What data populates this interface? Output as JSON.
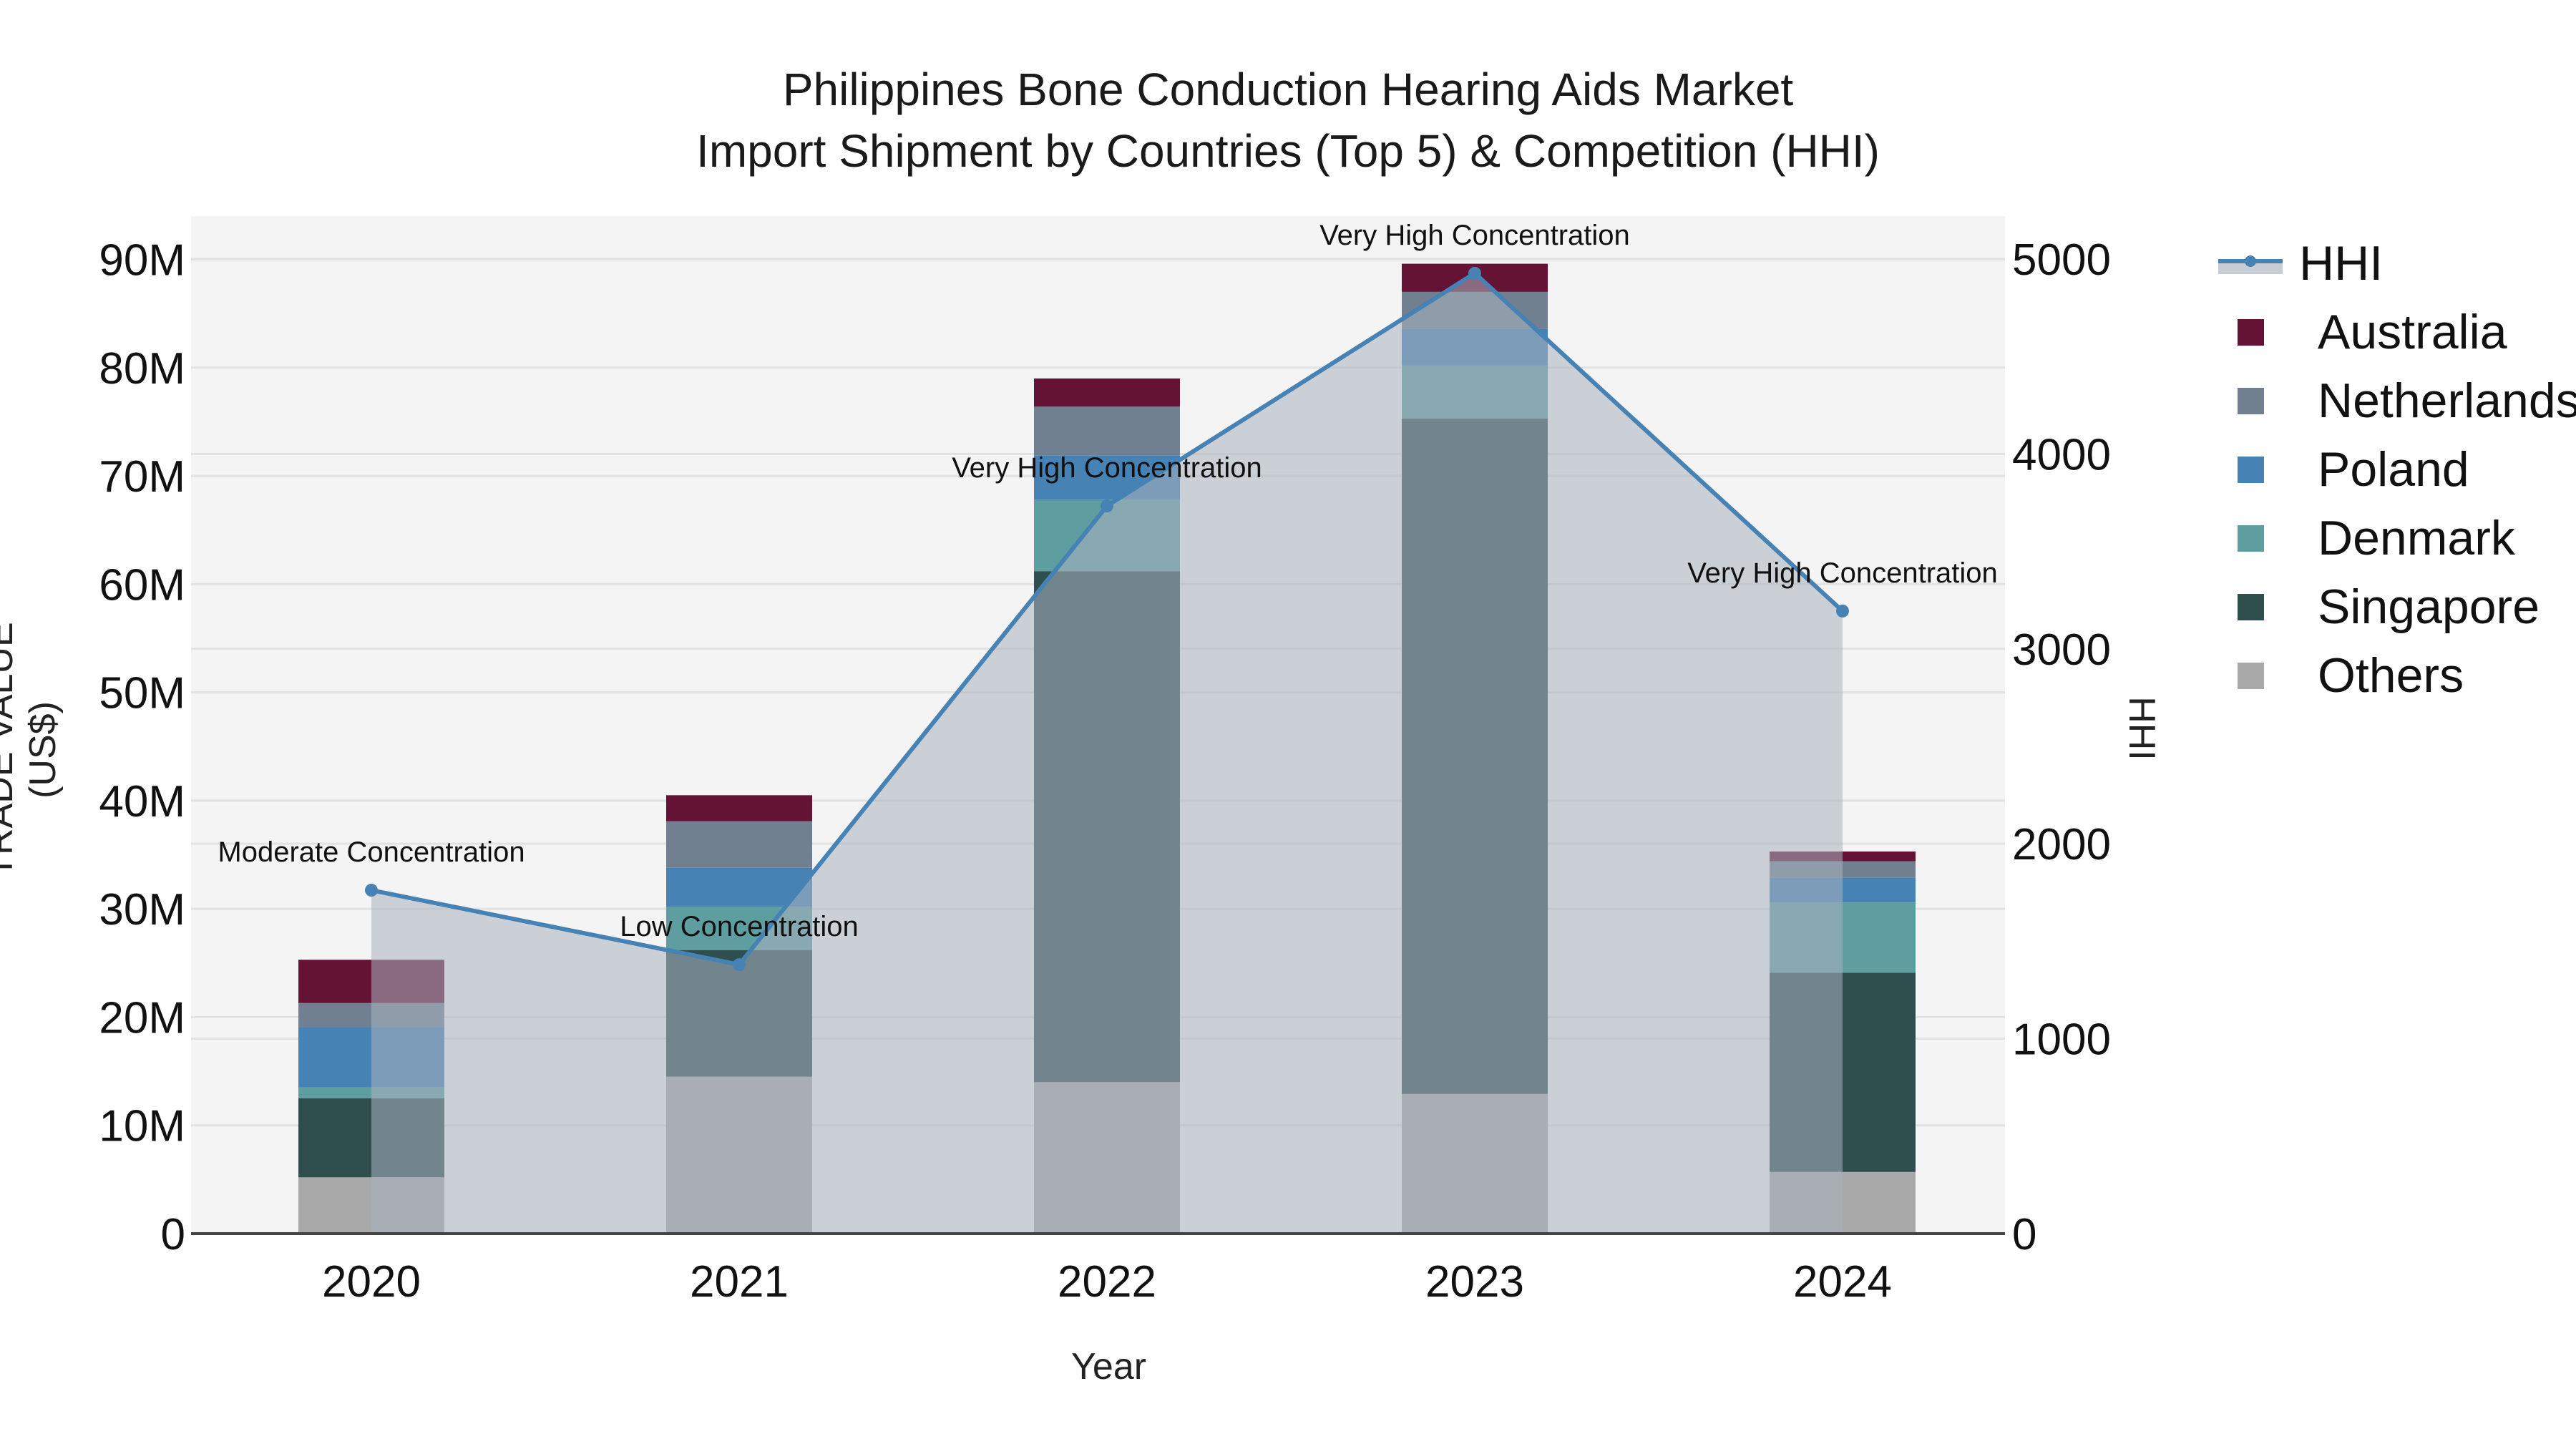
{
  "title": {
    "line1": "Philippines Bone Conduction Hearing Aids Market",
    "line2": "Import Shipment by Countries (Top 5) & Competition (HHI)"
  },
  "axes": {
    "x_title": "Year",
    "y_left_title": "TRADE VALUE (US$)",
    "y_right_title": "HHI",
    "y_left_ticks": [
      "0",
      "10M",
      "20M",
      "30M",
      "40M",
      "50M",
      "60M",
      "70M",
      "80M",
      "90M"
    ],
    "y_right_ticks": [
      "0",
      "1000",
      "2000",
      "3000",
      "4000",
      "5000"
    ]
  },
  "legend": [
    {
      "label": "HHI",
      "type": "line",
      "color": "#4682B4"
    },
    {
      "label": "Australia",
      "type": "bar",
      "color": "#641335"
    },
    {
      "label": "Netherlands",
      "type": "bar",
      "color": "#708090"
    },
    {
      "label": "Poland",
      "type": "bar",
      "color": "#4682B4"
    },
    {
      "label": "Denmark",
      "type": "bar",
      "color": "#5F9EA0"
    },
    {
      "label": "Singapore",
      "type": "bar",
      "color": "#2F4F4F"
    },
    {
      "label": "Others",
      "type": "bar",
      "color": "#A9A9A9"
    }
  ],
  "chart_data": {
    "type": "bar",
    "stacked": true,
    "title": "Philippines Bone Conduction Hearing Aids Market Import Shipment by Countries (Top 5) & Competition (HHI)",
    "xlabel": "Year",
    "ylabel": "TRADE VALUE (US$)",
    "y2label": "HHI",
    "categories": [
      "2020",
      "2021",
      "2022",
      "2023",
      "2024"
    ],
    "ylim": [
      0,
      94000000
    ],
    "y2lim": [
      0,
      5220
    ],
    "grid": true,
    "legend_position": "right",
    "series": [
      {
        "name": "Others",
        "color": "#A9A9A9",
        "values": [
          5200000,
          14500000,
          14000000,
          12900000,
          5700000
        ]
      },
      {
        "name": "Singapore",
        "color": "#2F4F4F",
        "values": [
          7300000,
          11700000,
          47200000,
          62400000,
          18400000
        ]
      },
      {
        "name": "Denmark",
        "color": "#5F9EA0",
        "values": [
          1000000,
          4000000,
          6600000,
          4900000,
          6500000
        ]
      },
      {
        "name": "Poland",
        "color": "#4682B4",
        "values": [
          5600000,
          3600000,
          4100000,
          3400000,
          2300000
        ]
      },
      {
        "name": "Netherlands",
        "color": "#708090",
        "values": [
          2200000,
          4300000,
          4500000,
          3400000,
          1500000
        ]
      },
      {
        "name": "Australia",
        "color": "#641335",
        "values": [
          4000000,
          2400000,
          2600000,
          2600000,
          900000
        ]
      }
    ],
    "line_series": {
      "name": "HHI",
      "axis": "right",
      "color": "#4682B4",
      "fill_color": "rgba(170,178,192,0.55)",
      "values": [
        1762,
        1380,
        3733,
        4927,
        3194
      ],
      "annotations": [
        "Moderate Concentration",
        "Low Concentration",
        "Very High Concentration",
        "Very High Concentration",
        "Very High Concentration"
      ]
    }
  }
}
